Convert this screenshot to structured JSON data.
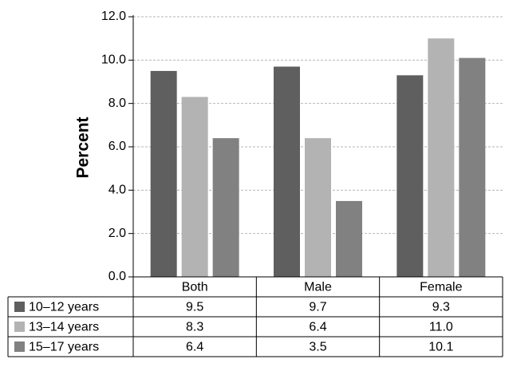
{
  "chart_data": {
    "type": "bar",
    "title": "",
    "xlabel": "",
    "ylabel": "Percent",
    "ylim": [
      0,
      12
    ],
    "yticks": [
      "0.0",
      "2.0",
      "4.0",
      "6.0",
      "8.0",
      "10.0",
      "12.0"
    ],
    "grid": true,
    "legend": "table-below",
    "categories": [
      "Both",
      "Male",
      "Female"
    ],
    "series": [
      {
        "name": "10–12 years",
        "color": "#5f5f5f",
        "values": [
          9.5,
          9.7,
          9.3
        ],
        "labels": [
          "9.5",
          "9.7",
          "9.3"
        ]
      },
      {
        "name": "13–14 years",
        "color": "#b3b3b3",
        "values": [
          8.3,
          6.4,
          11.0
        ],
        "labels": [
          "8.3",
          "6.4",
          "11.0"
        ]
      },
      {
        "name": "15–17 years",
        "color": "#818181",
        "values": [
          6.4,
          3.5,
          10.1
        ],
        "labels": [
          "6.4",
          "3.5",
          "10.1"
        ]
      }
    ]
  }
}
